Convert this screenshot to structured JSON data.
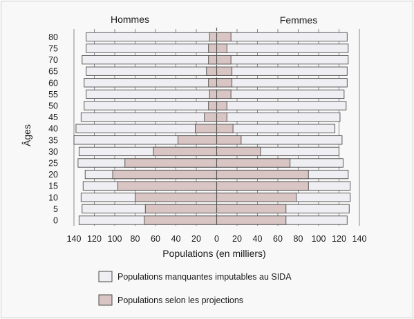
{
  "chart_data": {
    "type": "bar",
    "orientation": "horizontal",
    "subtype": "population-pyramid",
    "left_group_label": "Hommes",
    "right_group_label": "Femmes",
    "ylabel": "Âges",
    "xlabel": "Populations (en milliers)",
    "categories": [
      "0",
      "5",
      "10",
      "15",
      "20",
      "25",
      "30",
      "35",
      "40",
      "45",
      "50",
      "55",
      "60",
      "65",
      "70",
      "75",
      "80"
    ],
    "x_ticks": [
      "140",
      "120",
      "100",
      "80",
      "60",
      "40",
      "20",
      "0",
      "20",
      "40",
      "60",
      "80",
      "100",
      "120",
      "140"
    ],
    "xlim": [
      -140,
      140
    ],
    "grid": "vertical",
    "series": [
      {
        "name": "Populations manquantes imputables au SIDA",
        "color": "#efeef3",
        "men": [
          -135,
          -132,
          -133,
          -131,
          -129,
          -136,
          -135,
          -140,
          -138,
          -133,
          -130,
          -128,
          -130,
          -128,
          -132,
          -128,
          -128
        ],
        "women": [
          128,
          130,
          131,
          131,
          129,
          124,
          120,
          123,
          116,
          121,
          127,
          125,
          128,
          128,
          129,
          129,
          128
        ]
      },
      {
        "name": "Populations selon les projections",
        "color": "#d9c5c3",
        "men": [
          -71,
          -70,
          -80,
          -97,
          -102,
          -90,
          -62,
          -38,
          -21,
          -12,
          -8,
          -7,
          -8,
          -10,
          -8,
          -8,
          -7
        ],
        "women": [
          68,
          68,
          78,
          90,
          90,
          72,
          43,
          24,
          16,
          10,
          10,
          14,
          15,
          15,
          14,
          10,
          14
        ]
      }
    ],
    "legend_position": "bottom"
  }
}
